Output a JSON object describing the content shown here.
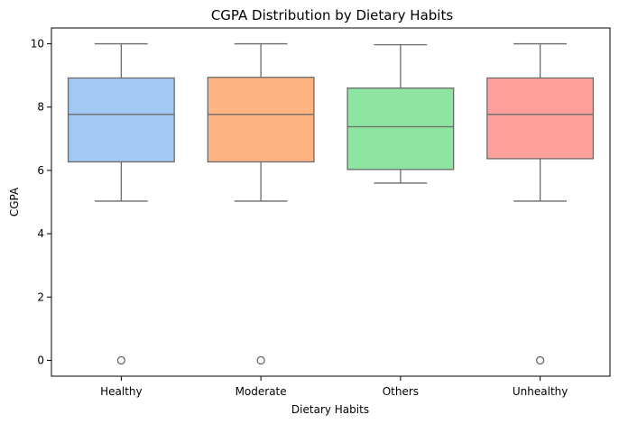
{
  "chart_data": {
    "type": "box",
    "title": "CGPA Distribution by Dietary Habits",
    "xlabel": "Dietary Habits",
    "ylabel": "CGPA",
    "categories": [
      "Healthy",
      "Moderate",
      "Others",
      "Unhealthy"
    ],
    "y_ticks": [
      0,
      2,
      4,
      6,
      8,
      10
    ],
    "ylim": [
      -0.5,
      10.5
    ],
    "grid": false,
    "boxes": [
      {
        "category": "Healthy",
        "whisker_low": 5.03,
        "q1": 6.27,
        "median": 7.77,
        "q3": 8.92,
        "whisker_high": 10.0,
        "outliers": [
          0
        ],
        "color": "#a1c9f4"
      },
      {
        "category": "Moderate",
        "whisker_low": 5.03,
        "q1": 6.27,
        "median": 7.77,
        "q3": 8.94,
        "whisker_high": 10.0,
        "outliers": [
          0
        ],
        "color": "#ffb482"
      },
      {
        "category": "Others",
        "whisker_low": 5.6,
        "q1": 6.03,
        "median": 7.38,
        "q3": 8.6,
        "whisker_high": 9.97,
        "outliers": [],
        "color": "#8de5a1"
      },
      {
        "category": "Unhealthy",
        "whisker_low": 5.03,
        "q1": 6.37,
        "median": 7.77,
        "q3": 8.92,
        "whisker_high": 10.0,
        "outliers": [
          0
        ],
        "color": "#ff9f9b"
      }
    ],
    "line_color": "#6b6b6b"
  }
}
